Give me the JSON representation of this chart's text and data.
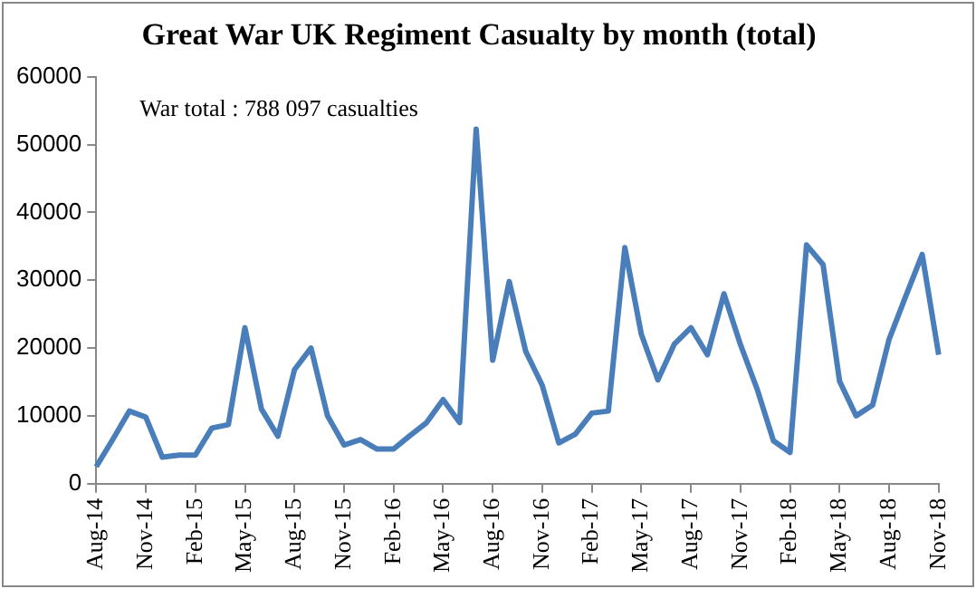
{
  "chart_data": {
    "type": "line",
    "title": "Great War UK Regiment Casualty by month (total)",
    "annotations": [
      "War total : 788 097 casualties"
    ],
    "categories": [
      "Aug-14",
      null,
      null,
      "Nov-14",
      null,
      null,
      "Feb-15",
      null,
      null,
      "May-15",
      null,
      null,
      "Aug-15",
      null,
      null,
      "Nov-15",
      null,
      null,
      "Feb-16",
      null,
      null,
      "May-16",
      null,
      null,
      "Aug-16",
      null,
      null,
      "Nov-16",
      null,
      null,
      "Feb-17",
      null,
      null,
      "May-17",
      null,
      null,
      "Aug-17",
      null,
      null,
      "Nov-17",
      null,
      null,
      "Feb-18",
      null,
      null,
      "May-18",
      null,
      null,
      "Aug-18",
      null,
      null,
      "Nov-18"
    ],
    "series": [
      {
        "color": "#4a7ebb",
        "values": [
          2500,
          6500,
          10700,
          9800,
          3900,
          4200,
          4200,
          8200,
          8700,
          23000,
          11000,
          7000,
          16800,
          20000,
          10000,
          5700,
          6500,
          5100,
          5100,
          7100,
          9000,
          12400,
          9000,
          52300,
          18200,
          29800,
          19500,
          14500,
          6000,
          7300,
          10400,
          10700,
          34800,
          22000,
          15300,
          20600,
          23000,
          19000,
          28000,
          20500,
          14000,
          6300,
          4600,
          35200,
          32300,
          15100,
          10000,
          11600,
          21300,
          27600,
          33800,
          19000
        ]
      }
    ],
    "ylim": [
      0,
      60000
    ],
    "yticks": [
      0,
      10000,
      20000,
      30000,
      40000,
      50000,
      60000
    ],
    "grid": false,
    "legend": false,
    "marker": "none",
    "line_style": "solid"
  }
}
